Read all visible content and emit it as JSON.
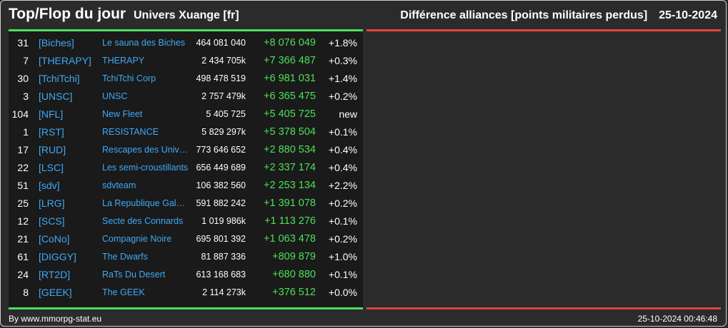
{
  "header": {
    "title": "Top/Flop du jour",
    "universe": "Univers Xuange [fr]",
    "metric": "Différence alliances [points militaires perdus]",
    "date": "25-10-2024"
  },
  "colors": {
    "background": "#2b2b2b",
    "table_bg": "#1a1a1a",
    "tag_blue": "#3fa9f5",
    "positive_green": "#4ce05a",
    "flop_red": "#e0443c"
  },
  "top_rows": [
    {
      "rank": "31",
      "tag": "[Biches]",
      "name": "Le sauna des Biches",
      "points": "464 081 040",
      "diff": "+8 076 049",
      "pct": "+1.8%"
    },
    {
      "rank": "7",
      "tag": "[THERAPY]",
      "name": "THERAPY",
      "points": "2 434 705k",
      "diff": "+7 366 487",
      "pct": "+0.3%"
    },
    {
      "rank": "30",
      "tag": "[TchiTchi]",
      "name": "TchiTchi Corp",
      "points": "498 478 519",
      "diff": "+6 981 031",
      "pct": "+1.4%"
    },
    {
      "rank": "3",
      "tag": "[UNSC]",
      "name": "UNSC",
      "points": "2 757 479k",
      "diff": "+6 365 475",
      "pct": "+0.2%"
    },
    {
      "rank": "104",
      "tag": "[NFL]",
      "name": "New Fleet",
      "points": "5 405 725",
      "diff": "+5 405 725",
      "pct": "new"
    },
    {
      "rank": "1",
      "tag": "[RST]",
      "name": "RESISTANCE",
      "points": "5 829 297k",
      "diff": "+5 378 504",
      "pct": "+0.1%"
    },
    {
      "rank": "17",
      "tag": "[RUD]",
      "name": "Rescapes des Univers",
      "points": "773 646 652",
      "diff": "+2 880 534",
      "pct": "+0.4%"
    },
    {
      "rank": "22",
      "tag": "[LSC]",
      "name": "Les semi-croustillants",
      "points": "656 449 689",
      "diff": "+2 337 174",
      "pct": "+0.4%"
    },
    {
      "rank": "51",
      "tag": "[sdv]",
      "name": "sdvteam",
      "points": "106 382 560",
      "diff": "+2 253 134",
      "pct": "+2.2%"
    },
    {
      "rank": "25",
      "tag": "[LRG]",
      "name": "La Republique Galactique",
      "points": "591 882 242",
      "diff": "+1 391 078",
      "pct": "+0.2%"
    },
    {
      "rank": "12",
      "tag": "[SCS]",
      "name": "Secte des Connards",
      "points": "1 019 986k",
      "diff": "+1 113 276",
      "pct": "+0.1%"
    },
    {
      "rank": "21",
      "tag": "[CoNo]",
      "name": "Compagnie Noire",
      "points": "695 801 392",
      "diff": "+1 063 478",
      "pct": "+0.2%"
    },
    {
      "rank": "61",
      "tag": "[DIGGY]",
      "name": "The Dwarfs",
      "points": "81 887 336",
      "diff": "+809 879",
      "pct": "+1.0%"
    },
    {
      "rank": "24",
      "tag": "[RT2D]",
      "name": "RaTs Du Desert",
      "points": "613 168 683",
      "diff": "+680 880",
      "pct": "+0.1%"
    },
    {
      "rank": "8",
      "tag": "[GEEK]",
      "name": "The GEEK",
      "points": "2 114 273k",
      "diff": "+376 512",
      "pct": "+0.0%"
    }
  ],
  "footer": {
    "source": "By www.mmorpg-stat.eu",
    "timestamp": "25-10-2024 00:46:48"
  }
}
